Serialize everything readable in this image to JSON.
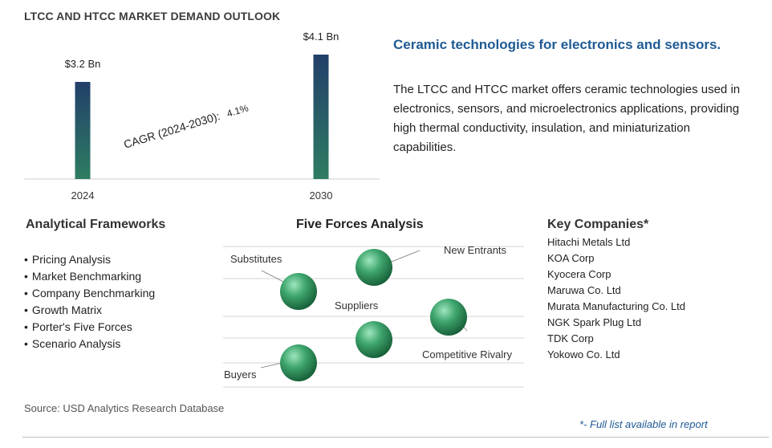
{
  "title": "LTCC AND HTCC MARKET DEMAND OUTLOOK",
  "chart_data": {
    "type": "bar",
    "categories": [
      "2024",
      "2030"
    ],
    "values": [
      3.2,
      4.1
    ],
    "value_labels": [
      "$3.2 Bn",
      "$4.1 Bn"
    ],
    "ylim": [
      0,
      4.1
    ],
    "grid": false,
    "annotation": {
      "text": "CAGR (2024-2030):",
      "value": "4.1%"
    },
    "colors": {
      "bar_top": "#223f6a",
      "bar_bottom": "#2e7d62"
    }
  },
  "headline": "Ceramic technologies for electronics and sensors.",
  "description": "The LTCC and HTCC market offers ceramic technologies used in electronics, sensors, and microelectronics applications, providing high thermal conductivity, insulation, and miniaturization capabilities.",
  "frameworks": {
    "title": "Analytical Frameworks",
    "items": [
      "Pricing Analysis",
      "Market Benchmarking",
      "Company Benchmarking",
      "Growth Matrix",
      "Porter's Five Forces",
      "Scenario Analysis"
    ]
  },
  "five_forces": {
    "title": "Five Forces Analysis",
    "labels": {
      "substitutes": "Substitutes",
      "new_entrants": "New Entrants",
      "suppliers": "Suppliers",
      "competitive_rivalry": "Competitive Rivalry",
      "buyers": "Buyers"
    }
  },
  "companies": {
    "title": "Key Companies*",
    "items": [
      "Hitachi Metals Ltd",
      "KOA Corp",
      "Kyocera Corp",
      "Maruwa Co. Ltd",
      "Murata Manufacturing Co. Ltd",
      "NGK Spark Plug Ltd",
      "TDK Corp",
      "Yokowo Co. Ltd"
    ]
  },
  "source": "Source: USD Analytics Research Database",
  "footnote": "*- Full list available in report",
  "colors": {
    "headline": "#1f5a94",
    "sphere_light": "#9ee6bf",
    "sphere_mid": "#3ea56d",
    "sphere_dark": "#175f38"
  }
}
